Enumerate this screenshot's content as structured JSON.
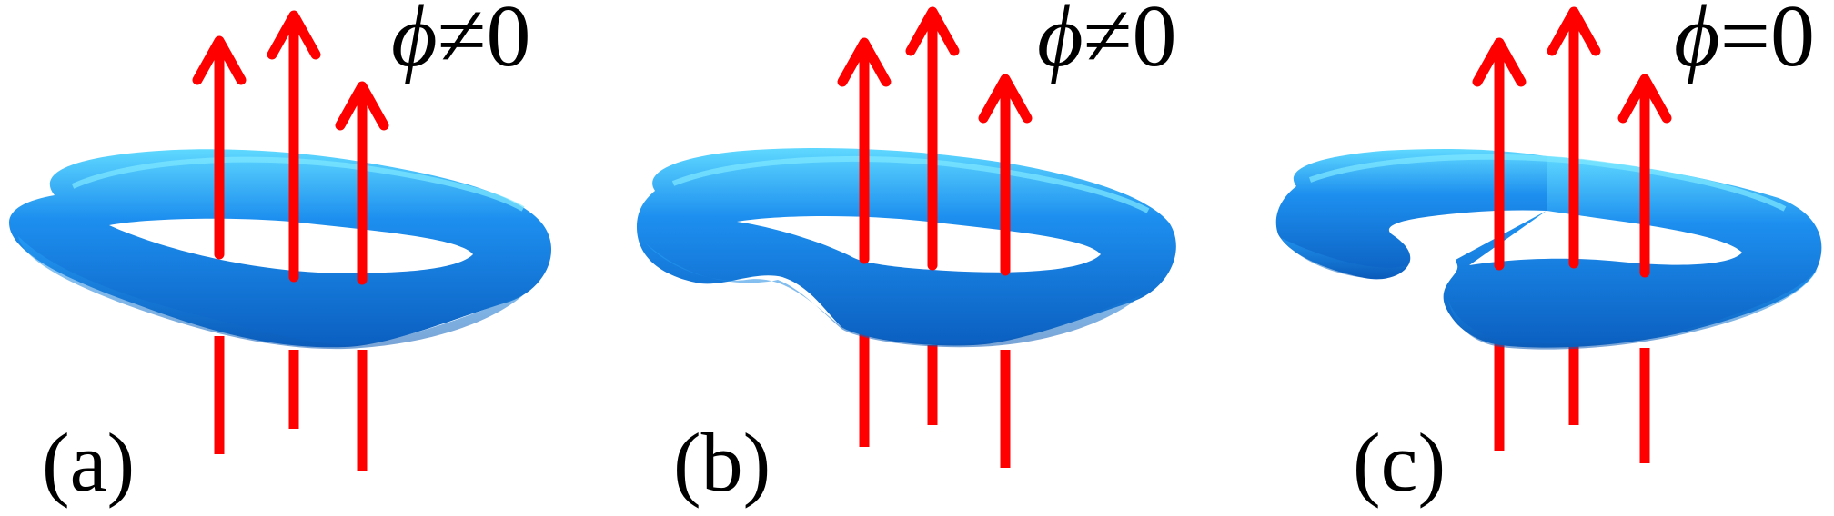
{
  "colors": {
    "arrow": "#ff0000",
    "ring_dark": "#0b5fc0",
    "ring_mid": "#1d8fef",
    "ring_light": "#5fd8ff",
    "text": "#000000"
  },
  "panels": [
    {
      "label": "(a)",
      "ring_state": "closed",
      "flux": {
        "symbol": "ϕ",
        "relation": "≠",
        "value": "0"
      }
    },
    {
      "label": "(b)",
      "ring_state": "pinched",
      "flux": {
        "symbol": "ϕ",
        "relation": "≠",
        "value": "0"
      }
    },
    {
      "label": "(c)",
      "ring_state": "broken",
      "flux": {
        "symbol": "ϕ",
        "relation": "=",
        "value": "0"
      }
    }
  ]
}
